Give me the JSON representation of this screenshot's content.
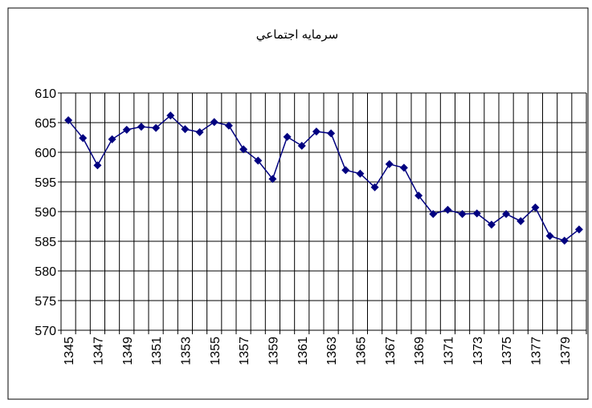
{
  "chart_data": {
    "type": "line",
    "title": "سرمایه اجتماعي",
    "categories": [
      "1345",
      null,
      "1347",
      null,
      "1349",
      null,
      "1351",
      null,
      "1353",
      null,
      "1355",
      null,
      "1357",
      null,
      "1359",
      null,
      "1361",
      null,
      "1363",
      null,
      "1365",
      null,
      "1367",
      null,
      "1369",
      null,
      "1371",
      null,
      "1373",
      null,
      "1375",
      null,
      "1377",
      null,
      "1379",
      null
    ],
    "series": [
      {
        "name": "سرمایه اجتماعي",
        "color": "#000080",
        "values": [
          605.4,
          602.4,
          597.8,
          602.2,
          603.8,
          604.3,
          604.1,
          606.2,
          603.9,
          603.4,
          605.1,
          604.5,
          600.5,
          598.6,
          595.5,
          602.6,
          601.1,
          603.5,
          603.2,
          597.0,
          596.4,
          594.1,
          598.0,
          597.4,
          592.7,
          589.6,
          590.3,
          589.6,
          589.7,
          587.8,
          589.6,
          588.4,
          590.7,
          585.9,
          585.1,
          587.0
        ]
      }
    ],
    "ylim": [
      570,
      610
    ],
    "yticks": [
      570,
      575,
      580,
      585,
      590,
      595,
      600,
      605,
      610
    ],
    "grid": true
  }
}
